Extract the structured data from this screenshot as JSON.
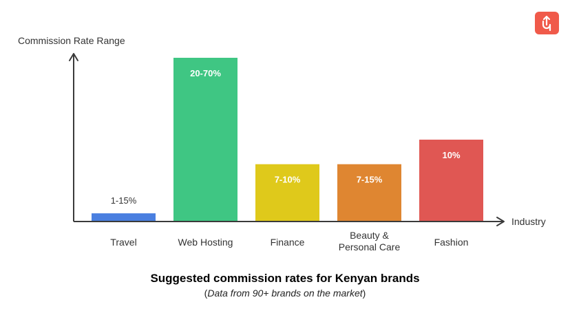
{
  "chart_data": {
    "type": "bar",
    "ylabel": "Commission Rate Range",
    "xlabel": "Industry",
    "categories": [
      "Travel",
      "Web Hosting",
      "Finance",
      "Beauty & Personal Care",
      "Fashion"
    ],
    "category_lines": [
      [
        "Travel"
      ],
      [
        "Web Hosting"
      ],
      [
        "Finance"
      ],
      [
        "Beauty &",
        "Personal Care"
      ],
      [
        "Fashion"
      ]
    ],
    "bar_labels": [
      "1-15%",
      "20-70%",
      "7-10%",
      "7-15%",
      "10%"
    ],
    "values": [
      0.05,
      1.0,
      0.35,
      0.35,
      0.5
    ],
    "ylim": [
      0,
      1.0
    ],
    "colors": [
      "#4a7fe0",
      "#3fc683",
      "#dfc91b",
      "#df8631",
      "#e05753"
    ],
    "grid": false,
    "legend": "none"
  },
  "caption": {
    "title": "Suggested commission rates for Kenyan brands",
    "subtitle_prefix": "(",
    "subtitle_italic": "Data from 90+ brands on the market",
    "subtitle_suffix": ")"
  },
  "logo": {
    "icon": "up-arrow-p-logo-icon",
    "color": "#f05a4a"
  }
}
